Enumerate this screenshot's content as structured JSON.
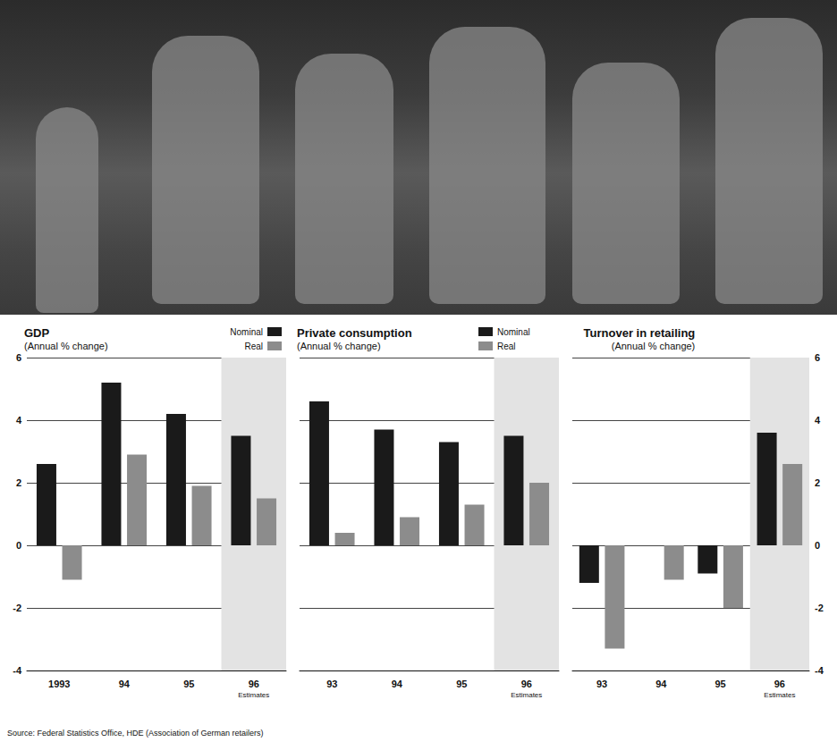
{
  "chart_data": [
    {
      "type": "bar",
      "title": "GDP",
      "subtitle": "(Annual % change)",
      "categories": [
        "1993",
        "94",
        "95",
        "96"
      ],
      "series": [
        {
          "name": "Nominal",
          "color": "#1a1a1a",
          "values": [
            2.6,
            5.2,
            4.2,
            3.5
          ]
        },
        {
          "name": "Real",
          "color": "#8c8c8c",
          "values": [
            -1.1,
            2.9,
            1.9,
            1.5
          ]
        }
      ],
      "ylim": [
        -4,
        6
      ],
      "yticks": [
        -4,
        -2,
        0,
        2,
        4,
        6
      ],
      "grid": true,
      "legend": "top-right",
      "annotations": [
        {
          "category": "96",
          "text": "Estimates"
        }
      ]
    },
    {
      "type": "bar",
      "title": "Private consumption",
      "subtitle": "(Annual % change)",
      "categories": [
        "93",
        "94",
        "95",
        "96"
      ],
      "series": [
        {
          "name": "Nominal",
          "color": "#1a1a1a",
          "values": [
            4.6,
            3.7,
            3.3,
            3.5
          ]
        },
        {
          "name": "Real",
          "color": "#8c8c8c",
          "values": [
            0.4,
            0.9,
            1.3,
            2.0
          ]
        }
      ],
      "ylim": [
        -4,
        6
      ],
      "yticks": [
        -4,
        -2,
        0,
        2,
        4,
        6
      ],
      "grid": true,
      "legend": "top-right",
      "tick_labels": "x",
      "annotations": [
        {
          "category": "96",
          "text": "Estimates"
        }
      ]
    },
    {
      "type": "bar",
      "title": "Turnover in retailing",
      "subtitle": "(Annual % change)",
      "categories": [
        "93",
        "94",
        "95",
        "96"
      ],
      "series": [
        {
          "color": "#1a1a1a",
          "values": [
            -1.2,
            0,
            -0.9,
            3.6
          ]
        },
        {
          "color": "#8c8c8c",
          "values": [
            -3.3,
            -1.1,
            -2.0,
            2.6
          ]
        }
      ],
      "ylim": [
        -4,
        6
      ],
      "yticks": [
        -4,
        -2,
        0,
        2,
        4,
        6
      ],
      "grid": true,
      "annotations": [
        {
          "category": "96",
          "text": "Estimates"
        }
      ]
    }
  ],
  "source": "Source: Federal Statistics Office, HDE (Association of German retailers)"
}
